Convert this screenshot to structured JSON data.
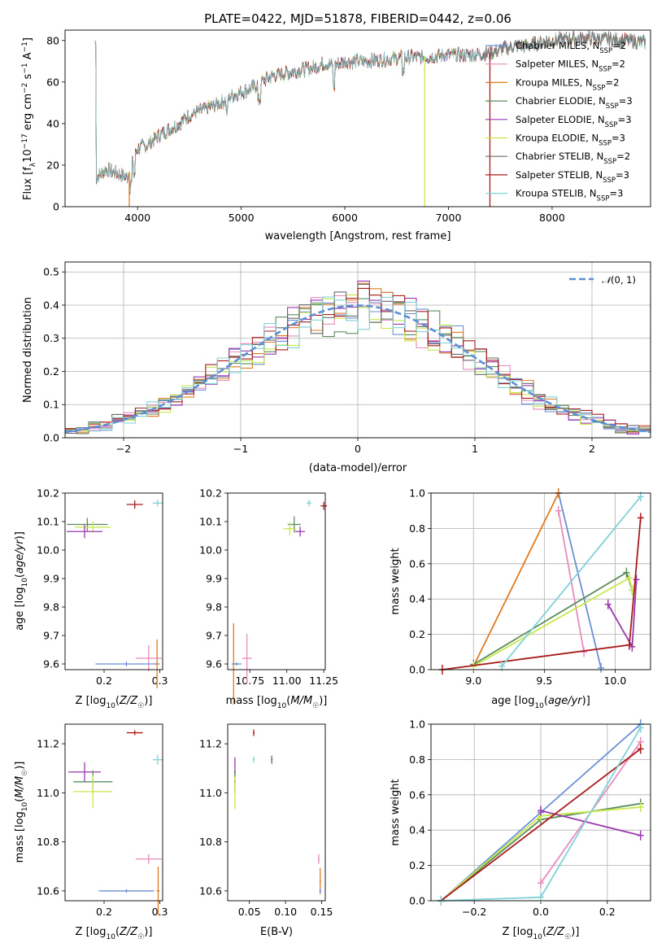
{
  "figure_title": "PLATE=0422, MJD=51878, FIBERID=0442, z=0.06",
  "colors": {
    "chabrier_miles": "#6b8fd6",
    "salpeter_miles": "#e88bbd",
    "kroupa_miles": "#e07b22",
    "chabrier_elodie": "#5c8c5c",
    "salpeter_elodie": "#9a38b0",
    "kroupa_elodie": "#c8e84a",
    "chabrier_stelib": "#6a6a6a",
    "salpeter_stelib": "#a81c1c",
    "kroupa_stelib": "#80d2d8",
    "gaussian": "#5b8fd6",
    "grid": "#b0b0b0"
  },
  "chart_data": [
    {
      "id": "spectrum",
      "type": "line",
      "title": "PLATE=0422, MJD=51878, FIBERID=0442, z=0.06",
      "xlabel": "wavelength [Angstrom, rest frame]",
      "ylabel": "Flux [f_λ 10^-17 erg cm^-2 s^-1 A^-1]",
      "xlim": [
        3300,
        8950
      ],
      "ylim": [
        0,
        85
      ],
      "xticks": [
        "4000",
        "5000",
        "6000",
        "7000",
        "8000"
      ],
      "yticks": [
        "0",
        "20",
        "40",
        "60",
        "80"
      ],
      "grid": false,
      "legend_position": "upper-right",
      "continuum": [
        [
          3600,
          14
        ],
        [
          3700,
          18
        ],
        [
          3800,
          16
        ],
        [
          3900,
          14
        ],
        [
          4000,
          28
        ],
        [
          4100,
          30
        ],
        [
          4200,
          34
        ],
        [
          4300,
          37
        ],
        [
          4400,
          40
        ],
        [
          4500,
          44
        ],
        [
          4600,
          46
        ],
        [
          4700,
          48
        ],
        [
          4800,
          50
        ],
        [
          4900,
          53
        ],
        [
          5000,
          55
        ],
        [
          5100,
          57
        ],
        [
          5200,
          60
        ],
        [
          5300,
          63
        ],
        [
          5400,
          64
        ],
        [
          5500,
          65
        ],
        [
          5600,
          66
        ],
        [
          5700,
          67
        ],
        [
          5800,
          69
        ],
        [
          5900,
          68
        ],
        [
          6000,
          70
        ],
        [
          6200,
          70
        ],
        [
          6400,
          71
        ],
        [
          6600,
          72
        ],
        [
          6800,
          72
        ],
        [
          7000,
          73
        ],
        [
          7200,
          73
        ],
        [
          7400,
          74
        ],
        [
          7600,
          77
        ],
        [
          7800,
          78
        ],
        [
          8000,
          80
        ],
        [
          8200,
          81
        ],
        [
          8400,
          81
        ],
        [
          8700,
          80
        ],
        [
          8900,
          79
        ]
      ],
      "series": [
        {
          "name": "Chabrier MILES, N_SSP=2",
          "label_main": "Chabrier MILES, N",
          "label_sub": "SSP",
          "label_tail": "=2",
          "color": "#6b8fd6"
        },
        {
          "name": "Salpeter MILES, N_SSP=2",
          "label_main": "Salpeter MILES, N",
          "label_sub": "SSP",
          "label_tail": "=2",
          "color": "#e88bbd"
        },
        {
          "name": "Kroupa MILES, N_SSP=2",
          "label_main": "Kroupa MILES, N",
          "label_sub": "SSP",
          "label_tail": "=2",
          "color": "#e07b22"
        },
        {
          "name": "Chabrier ELODIE, N_SSP=3",
          "label_main": "Chabrier ELODIE, N",
          "label_sub": "SSP",
          "label_tail": "=3",
          "color": "#5c8c5c"
        },
        {
          "name": "Salpeter ELODIE, N_SSP=3",
          "label_main": "Salpeter ELODIE, N",
          "label_sub": "SSP",
          "label_tail": "=3",
          "color": "#9a38b0"
        },
        {
          "name": "Kroupa ELODIE, N_SSP=3",
          "label_main": "Kroupa ELODIE, N",
          "label_sub": "SSP",
          "label_tail": "=3",
          "color": "#c8e84a"
        },
        {
          "name": "Chabrier STELIB, N_SSP=2",
          "label_main": "Chabrier STELIB, N",
          "label_sub": "SSP",
          "label_tail": "=2",
          "color": "#6a6a6a"
        },
        {
          "name": "Salpeter STELIB, N_SSP=3",
          "label_main": "Salpeter STELIB, N",
          "label_sub": "SSP",
          "label_tail": "=3",
          "color": "#a81c1c"
        },
        {
          "name": "Kroupa STELIB, N_SSP=3",
          "label_main": "Kroupa STELIB, N",
          "label_sub": "SSP",
          "label_tail": "=3",
          "color": "#80d2d8"
        }
      ],
      "drops": [
        {
          "x": 3920,
          "color": "#e07b22"
        },
        {
          "x": 6770,
          "color": "#c8e84a"
        },
        {
          "x": 7400,
          "color": "#a81c1c"
        }
      ]
    },
    {
      "id": "residuals",
      "type": "line",
      "xlabel": "(data-model)/error",
      "ylabel": "Normed distribution",
      "xlim": [
        -2.5,
        2.5
      ],
      "ylim": [
        0,
        0.53
      ],
      "xticks": [
        "−2",
        "−1",
        "0",
        "1",
        "2"
      ],
      "yticks": [
        "0.0",
        "0.1",
        "0.2",
        "0.3",
        "0.4",
        "0.5"
      ],
      "grid": true,
      "legend_position": "upper-right",
      "legend_label": "N(0,1)",
      "bin_width": 0.1,
      "histogram_peak_example": [
        0.5,
        0.48,
        0.47,
        0.45,
        0.44,
        0.43,
        0.41
      ]
    },
    {
      "id": "age_vs_Z",
      "type": "scatter",
      "xlabel": "Z [log10(Z/Z☉)]",
      "ylabel": "age [log10(age/yr)]",
      "xlim": [
        0.13,
        0.305
      ],
      "ylim": [
        9.58,
        10.2
      ],
      "xticks": [
        "0.2",
        "0.3"
      ],
      "yticks": [
        "9.6",
        "9.7",
        "9.8",
        "9.9",
        "10.0",
        "10.1",
        "10.2"
      ],
      "points": [
        {
          "x": 0.25,
          "y": 10.16,
          "c": "#a81c1c"
        },
        {
          "x": 0.295,
          "y": 10.165,
          "c": "#80d2d8"
        },
        {
          "x": 0.17,
          "y": 10.09,
          "c": "#5c8c5c"
        },
        {
          "x": 0.18,
          "y": 10.08,
          "c": "#c8e84a"
        },
        {
          "x": 0.165,
          "y": 10.065,
          "c": "#9a38b0"
        },
        {
          "x": 0.28,
          "y": 9.62,
          "c": "#e88bbd"
        },
        {
          "x": 0.29,
          "y": 9.6,
          "c": "#e07b22"
        },
        {
          "x": 0.24,
          "y": 9.6,
          "c": "#6b8fd6"
        }
      ]
    },
    {
      "id": "age_vs_mass",
      "type": "scatter",
      "xlabel": "mass [log10(M/M☉)]",
      "xlim": [
        10.6,
        11.26
      ],
      "ylim": [
        9.58,
        10.2
      ],
      "xticks": [
        "10.75",
        "11.00",
        "11.25"
      ],
      "yticks": [
        "9.6",
        "9.7",
        "9.8",
        "9.9",
        "10.0",
        "10.1",
        "10.2"
      ]
    },
    {
      "id": "weight_vs_age",
      "type": "line",
      "xlabel": "age [log10(age/yr)]",
      "ylabel": "mass weight",
      "xlim": [
        8.7,
        10.25
      ],
      "ylim": [
        0,
        1
      ],
      "xticks": [
        "9.0",
        "9.5",
        "10.0"
      ],
      "yticks": [
        "0.0",
        "0.2",
        "0.4",
        "0.6",
        "0.8",
        "1.0"
      ],
      "grid": true,
      "series": [
        {
          "c": "#6b8fd6",
          "pts": [
            [
              9.6,
              1.0
            ],
            [
              9.9,
              0.01
            ]
          ]
        },
        {
          "c": "#e07b22",
          "pts": [
            [
              9.0,
              0.02
            ],
            [
              9.6,
              1.0
            ]
          ]
        },
        {
          "c": "#e88bbd",
          "pts": [
            [
              9.6,
              0.9
            ],
            [
              9.78,
              0.1
            ]
          ]
        },
        {
          "c": "#5c8c5c",
          "pts": [
            [
              9.0,
              0.03
            ],
            [
              10.08,
              0.55
            ],
            [
              10.12,
              0.45
            ]
          ]
        },
        {
          "c": "#c8e84a",
          "pts": [
            [
              9.0,
              0.02
            ],
            [
              10.1,
              0.52
            ],
            [
              10.12,
              0.45
            ]
          ]
        },
        {
          "c": "#9a38b0",
          "pts": [
            [
              9.95,
              0.37
            ],
            [
              10.12,
              0.13
            ],
            [
              10.15,
              0.51
            ]
          ]
        },
        {
          "c": "#a81c1c",
          "pts": [
            [
              8.78,
              0.0
            ],
            [
              10.1,
              0.14
            ],
            [
              10.18,
              0.86
            ]
          ]
        },
        {
          "c": "#80d2d8",
          "pts": [
            [
              9.2,
              0.02
            ],
            [
              10.18,
              0.98
            ]
          ]
        }
      ]
    },
    {
      "id": "mass_vs_Z",
      "type": "scatter",
      "xlabel": "Z [log10(Z/Z☉)]",
      "ylabel": "mass [log10(M/M☉)]",
      "xlim": [
        0.13,
        0.305
      ],
      "ylim": [
        10.56,
        11.28
      ],
      "xticks": [
        "0.2",
        "0.3"
      ],
      "yticks": [
        "10.6",
        "10.8",
        "11.0",
        "11.2"
      ]
    },
    {
      "id": "mass_vs_EBV",
      "type": "scatter",
      "xlabel": "E(B-V)",
      "xlim": [
        0.02,
        0.155
      ],
      "ylim": [
        10.56,
        11.28
      ],
      "xticks": [
        "0.05",
        "0.10",
        "0.15"
      ],
      "yticks": [
        "10.6",
        "10.8",
        "11.0",
        "11.2"
      ]
    },
    {
      "id": "weight_vs_Z",
      "type": "line",
      "xlabel": "Z [log10(Z/Z☉)]",
      "ylabel": "mass weight",
      "xlim": [
        -0.33,
        0.33
      ],
      "ylim": [
        0,
        1
      ],
      "xticks": [
        "−0.2",
        "0.0",
        "0.2"
      ],
      "yticks": [
        "0.0",
        "0.2",
        "0.4",
        "0.6",
        "0.8",
        "1.0"
      ],
      "grid": true,
      "series": [
        {
          "c": "#6b8fd6",
          "pts": [
            [
              -0.3,
              0.0
            ],
            [
              0.0,
              0.5
            ],
            [
              0.3,
              1.0
            ]
          ]
        },
        {
          "c": "#e88bbd",
          "pts": [
            [
              0.0,
              0.1
            ],
            [
              0.3,
              0.9
            ]
          ]
        },
        {
          "c": "#5c8c5c",
          "pts": [
            [
              -0.3,
              0.0
            ],
            [
              0.0,
              0.46
            ],
            [
              0.3,
              0.55
            ]
          ]
        },
        {
          "c": "#c8e84a",
          "pts": [
            [
              -0.3,
              0.0
            ],
            [
              0.0,
              0.48
            ],
            [
              0.3,
              0.53
            ]
          ]
        },
        {
          "c": "#9a38b0",
          "pts": [
            [
              0.0,
              0.51
            ],
            [
              0.3,
              0.37
            ]
          ]
        },
        {
          "c": "#a81c1c",
          "pts": [
            [
              -0.3,
              0.0
            ],
            [
              0.3,
              0.86
            ]
          ]
        },
        {
          "c": "#80d2d8",
          "pts": [
            [
              -0.3,
              0.0
            ],
            [
              0.0,
              0.02
            ],
            [
              0.3,
              0.98
            ]
          ]
        }
      ]
    }
  ]
}
